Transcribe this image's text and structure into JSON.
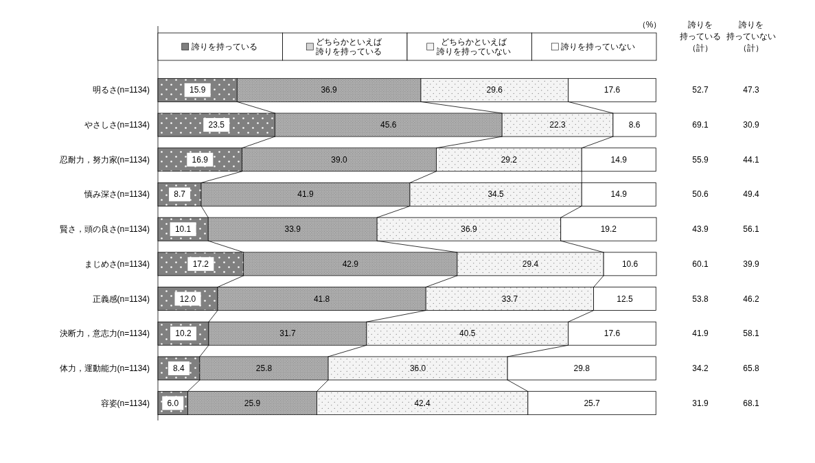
{
  "chart_data": {
    "type": "bar",
    "orientation": "horizontal",
    "stacked": true,
    "legend": "top",
    "categories": [
      "明るさ(n=1134)",
      "やさしさ(n=1134)",
      "忍耐力，努力家(n=1134)",
      "慎み深さ(n=1134)",
      "賢さ，頭の良さ(n=1134)",
      "まじめさ(n=1134)",
      "正義感(n=1134)",
      "決断力，意志力(n=1134)",
      "体力，運動能力(n=1134)",
      "容姿(n=1134)"
    ],
    "series": [
      {
        "name": "誇りを持っている",
        "color": "#808080",
        "values": [
          15.9,
          23.5,
          16.9,
          8.7,
          10.1,
          17.2,
          12.0,
          10.2,
          8.4,
          6.0
        ],
        "value_labels": [
          "15.9",
          "23.5",
          "16.9",
          "8.7",
          "10.1",
          "17.2",
          "12.0",
          "10.2",
          "8.4",
          "6.0"
        ]
      },
      {
        "name": "どちらかといえば誇りを持っている",
        "color": "#d4d4d4",
        "values": [
          36.9,
          45.6,
          39.0,
          41.9,
          33.9,
          42.9,
          41.8,
          31.7,
          25.8,
          25.9
        ],
        "value_labels": [
          "36.9",
          "45.6",
          "39.0",
          "41.9",
          "33.9",
          "42.9",
          "41.8",
          "31.7",
          "25.8",
          "25.9"
        ]
      },
      {
        "name": "どちらかといえば誇りを持っていない",
        "color": "#f4f4f4",
        "values": [
          29.6,
          22.3,
          29.2,
          34.5,
          36.9,
          29.4,
          33.7,
          40.5,
          36.0,
          42.4
        ],
        "value_labels": [
          "29.6",
          "22.3",
          "29.2",
          "34.5",
          "36.9",
          "29.4",
          "33.7",
          "40.5",
          "36.0",
          "42.4"
        ]
      },
      {
        "name": "誇りを持っていない",
        "color": "#ffffff",
        "values": [
          17.6,
          8.6,
          14.9,
          14.9,
          19.2,
          10.6,
          12.5,
          17.6,
          29.8,
          25.7
        ],
        "value_labels": [
          "17.6",
          "8.6",
          "14.9",
          "14.9",
          "19.2",
          "10.6",
          "12.5",
          "17.6",
          "29.8",
          "25.7"
        ]
      }
    ],
    "annotations": [
      "誇りを持っている（計）",
      "誇りを持っていない（計）",
      "52.7",
      "69.1",
      "55.9",
      "50.6",
      "43.9",
      "60.1",
      "53.8",
      "41.9",
      "34.2",
      "31.9",
      "47.3",
      "30.9",
      "44.1",
      "49.4",
      "56.1",
      "39.9",
      "46.2",
      "58.1",
      "65.8",
      "68.1",
      "（%）"
    ]
  }
}
